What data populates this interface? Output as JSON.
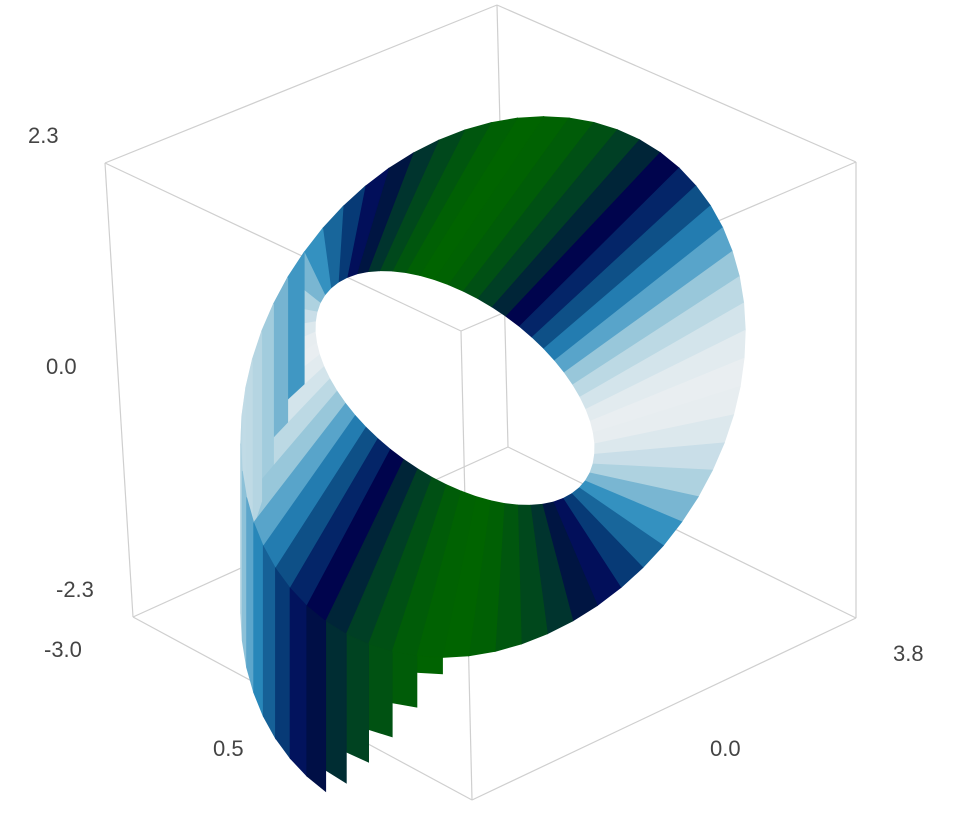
{
  "chart_data": {
    "type": "surface3d",
    "grid": true,
    "colorscale": [
      "#006400",
      "#003a2a",
      "#000050",
      "#08457d",
      "#2b8cbe",
      "#a6cede",
      "#e9eef1"
    ],
    "z_ticks": [
      "2.3",
      "0.0",
      "-2.3",
      "-3.0"
    ],
    "x_ticks": [
      "0.5"
    ],
    "y_ticks": [
      "0.0",
      "3.8"
    ]
  }
}
